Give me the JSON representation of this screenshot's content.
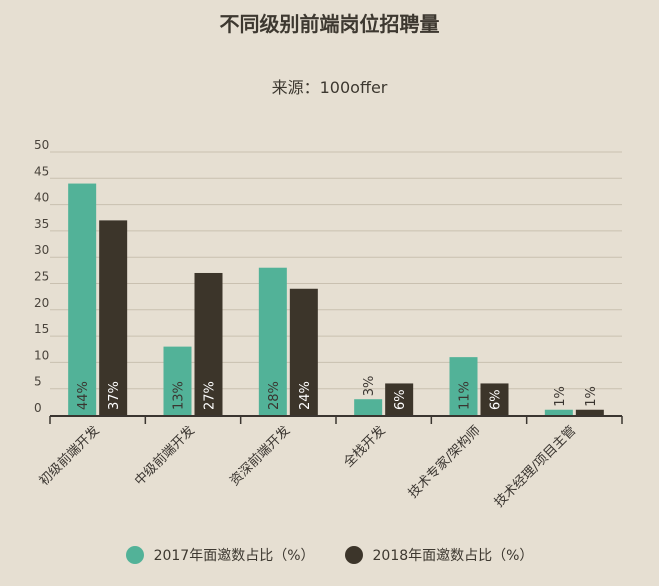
{
  "chart_data": {
    "type": "bar",
    "title": "不同级别前端岗位招聘量",
    "subtitle": "来源：100offer",
    "categories": [
      "初级前端开发",
      "中级前端开发",
      "资深前端开发",
      "全栈开发",
      "技术专家/架构师",
      "技术经理/项目主管"
    ],
    "series": [
      {
        "name": "2017年面邀数占比（%）",
        "values": [
          44,
          13,
          28,
          3,
          11,
          1
        ],
        "labels": [
          "44%",
          "13%",
          "28%",
          "3%",
          "11%",
          "1%"
        ],
        "color": "#52b298"
      },
      {
        "name": "2018年面邀数占比（%）",
        "values": [
          37,
          27,
          24,
          6,
          6,
          1
        ],
        "labels": [
          "37%",
          "27%",
          "24%",
          "6%",
          "6%",
          "1%"
        ],
        "color": "#3c352a"
      }
    ],
    "yticks": [
      0,
      5,
      10,
      15,
      20,
      25,
      30,
      35,
      40,
      45,
      50
    ],
    "ylim": [
      0,
      50
    ],
    "grid": true,
    "legend_position": "bottom"
  }
}
